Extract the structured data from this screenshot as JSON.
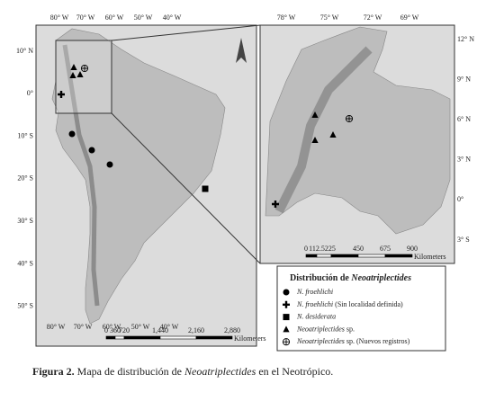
{
  "left_map": {
    "lon_labels_top": [
      "80° W",
      "70° W",
      "60° W",
      "50° W",
      "40° W"
    ],
    "lon_labels_bottom": [
      "80° W",
      "70° W",
      "60° W",
      "50° W",
      "40° W"
    ],
    "lat_labels": [
      "10° N",
      "0°",
      "10° S",
      "20° S",
      "30° S",
      "40° S",
      "50° S"
    ],
    "scale_labels": [
      "0",
      "360",
      "720",
      "1,440",
      "2,160",
      "2,880"
    ],
    "scale_unit": "Kilometers"
  },
  "right_map": {
    "lon_labels_top": [
      "78° W",
      "75° W",
      "72° W",
      "69° W"
    ],
    "lat_labels": [
      "12° N",
      "9° N",
      "6° N",
      "3° N",
      "0°",
      "3° S"
    ],
    "scale_labels": [
      "0",
      "112.5225",
      "450",
      "675",
      "900"
    ],
    "scale_unit": "Kilometers"
  },
  "legend": {
    "title_prefix": "Distribución de",
    "title_genus": "Neoatriplectides",
    "items": [
      {
        "name": "N. froehlichi",
        "note": null
      },
      {
        "name": "N. froehlichi",
        "note": "(Sin localidad definida)"
      },
      {
        "name": "N. desiderata",
        "note": null
      },
      {
        "name": "Neoatriplectides",
        "note": "sp."
      },
      {
        "name": "Neoatriplectides",
        "note": "sp. (Nuevos registros)"
      }
    ]
  },
  "caption": {
    "label": "Figura 2.",
    "text_before": "Mapa de distribución de",
    "genus": "Neoatriplectides",
    "text_after": "en el Neotrópico."
  }
}
